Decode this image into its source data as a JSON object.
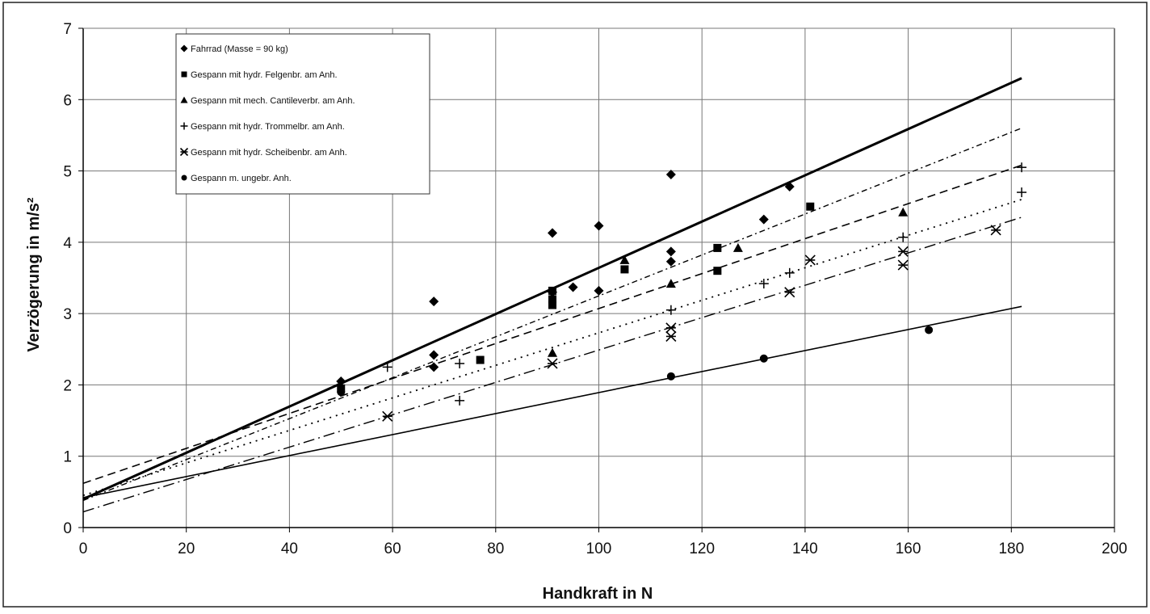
{
  "chart_data": {
    "type": "scatter",
    "title": "",
    "xlabel": "Handkraft in N",
    "ylabel": "Verzögerung in  m/s²",
    "xlim": [
      0,
      200
    ],
    "ylim": [
      0,
      7
    ],
    "x_ticks": [
      "0",
      "20",
      "40",
      "60",
      "80",
      "100",
      "120",
      "140",
      "160",
      "180",
      "200"
    ],
    "y_ticks": [
      "0",
      "1",
      "2",
      "3",
      "4",
      "5",
      "6",
      "7"
    ],
    "grid": true,
    "legend_placement": "top-left",
    "series": [
      {
        "name": "Fahrrad (Masse = 90 kg)",
        "marker": "diamond",
        "color": "#000000",
        "points": [
          [
            50,
            2.05
          ],
          [
            68,
            2.42
          ],
          [
            68,
            3.17
          ],
          [
            68,
            2.25
          ],
          [
            91,
            4.13
          ],
          [
            91,
            3.3
          ],
          [
            95,
            3.37
          ],
          [
            100,
            4.23
          ],
          [
            100,
            3.32
          ],
          [
            114,
            4.95
          ],
          [
            114,
            3.87
          ],
          [
            114,
            3.73
          ],
          [
            132,
            4.32
          ],
          [
            137,
            4.78
          ]
        ],
        "trend": {
          "x": [
            0,
            182
          ],
          "y": [
            0.4,
            6.3
          ],
          "style": "solid-thick"
        }
      },
      {
        "name": "Gespann mit hydr. Felgenbr. am Anh.",
        "marker": "square",
        "color": "#000000",
        "points": [
          [
            50,
            1.95
          ],
          [
            77,
            2.35
          ],
          [
            91,
            3.32
          ],
          [
            91,
            3.2
          ],
          [
            91,
            3.12
          ],
          [
            105,
            3.62
          ],
          [
            123,
            3.92
          ],
          [
            123,
            3.6
          ],
          [
            141,
            4.5
          ]
        ],
        "trend": {
          "x": [
            0,
            182
          ],
          "y": [
            0.38,
            5.6
          ],
          "style": "dashdot-short"
        }
      },
      {
        "name": "Gespann mit mech. Cantileverbr. am Anh.",
        "marker": "triangle",
        "color": "#000000",
        "points": [
          [
            91,
            2.45
          ],
          [
            105,
            3.75
          ],
          [
            114,
            3.42
          ],
          [
            127,
            3.92
          ],
          [
            159,
            4.42
          ]
        ],
        "trend": {
          "x": [
            0,
            182
          ],
          "y": [
            0.62,
            5.08
          ],
          "style": "dashed"
        }
      },
      {
        "name": "Gespann mit hydr. Trommelbr. am Anh.",
        "marker": "plus",
        "color": "#000000",
        "points": [
          [
            59,
            2.25
          ],
          [
            73,
            2.3
          ],
          [
            73,
            1.78
          ],
          [
            114,
            3.05
          ],
          [
            132,
            3.42
          ],
          [
            137,
            3.57
          ],
          [
            159,
            4.07
          ],
          [
            182,
            5.05
          ],
          [
            182,
            4.7
          ]
        ],
        "trend": {
          "x": [
            0,
            182
          ],
          "y": [
            0.45,
            4.6
          ],
          "style": "dotted"
        }
      },
      {
        "name": "Gespann mit hydr. Scheibenbr. am Anh.",
        "marker": "asterisk",
        "color": "#000000",
        "points": [
          [
            59,
            1.56
          ],
          [
            91,
            2.3
          ],
          [
            114,
            2.8
          ],
          [
            114,
            2.68
          ],
          [
            137,
            3.3
          ],
          [
            141,
            3.75
          ],
          [
            159,
            3.87
          ],
          [
            159,
            3.68
          ],
          [
            177,
            4.17
          ]
        ],
        "trend": {
          "x": [
            0,
            182
          ],
          "y": [
            0.22,
            4.35
          ],
          "style": "dashdot-long"
        }
      },
      {
        "name": "Gespann m. ungebr. Anh.",
        "marker": "circle",
        "color": "#000000",
        "points": [
          [
            50,
            1.9
          ],
          [
            114,
            2.12
          ],
          [
            132,
            2.37
          ],
          [
            164,
            2.77
          ]
        ],
        "trend": {
          "x": [
            0,
            182
          ],
          "y": [
            0.42,
            3.1
          ],
          "style": "solid-thin"
        }
      }
    ]
  }
}
